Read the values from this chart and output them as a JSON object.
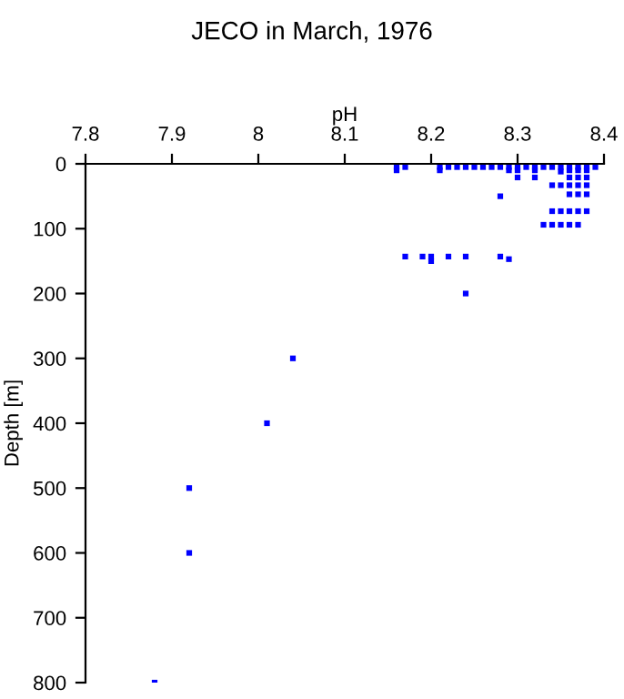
{
  "chart_data": {
    "type": "scatter",
    "title": "JECO in March, 1976",
    "xlabel": "pH",
    "ylabel": "Depth [m]",
    "x": [
      8.16,
      8.17,
      8.21,
      8.22,
      8.23,
      8.24,
      8.25,
      8.26,
      8.27,
      8.28,
      8.29,
      8.3,
      8.31,
      8.32,
      8.33,
      8.34,
      8.35,
      8.36,
      8.37,
      8.38,
      8.39,
      8.16,
      8.21,
      8.29,
      8.3,
      8.32,
      8.36,
      8.37,
      8.38,
      8.35,
      8.3,
      8.32,
      8.36,
      8.37,
      8.38,
      8.34,
      8.35,
      8.36,
      8.37,
      8.38,
      8.36,
      8.37,
      8.38,
      8.28,
      8.34,
      8.35,
      8.36,
      8.37,
      8.38,
      8.33,
      8.34,
      8.35,
      8.36,
      8.37,
      8.17,
      8.19,
      8.2,
      8.22,
      8.24,
      8.28,
      8.29,
      8.2,
      8.24,
      8.04,
      8.01,
      7.92,
      7.92,
      7.88
    ],
    "series": [
      {
        "color": "#0000ff",
        "values": [
          5,
          5,
          5,
          5,
          5,
          5,
          5,
          5,
          5,
          5,
          5,
          5,
          5,
          5,
          5,
          5,
          5,
          5,
          5,
          5,
          5,
          10,
          10,
          10,
          10,
          10,
          10,
          10,
          10,
          12,
          21,
          21,
          21,
          21,
          21,
          33,
          33,
          33,
          33,
          33,
          47,
          47,
          47,
          50,
          73,
          73,
          73,
          73,
          73,
          94,
          94,
          94,
          94,
          94,
          143,
          143,
          143,
          143,
          143,
          143,
          147,
          150,
          200,
          300,
          400,
          500,
          600,
          800
        ]
      }
    ],
    "marker": "square",
    "xlim": [
      7.8,
      8.4
    ],
    "xticks": [
      7.8,
      7.9,
      8,
      8.1,
      8.2,
      8.3,
      8.4
    ],
    "ylim": [
      800,
      0
    ],
    "yticks": [
      0,
      100,
      200,
      300,
      400,
      500,
      600,
      700,
      800
    ],
    "grid": false,
    "legend": false
  }
}
